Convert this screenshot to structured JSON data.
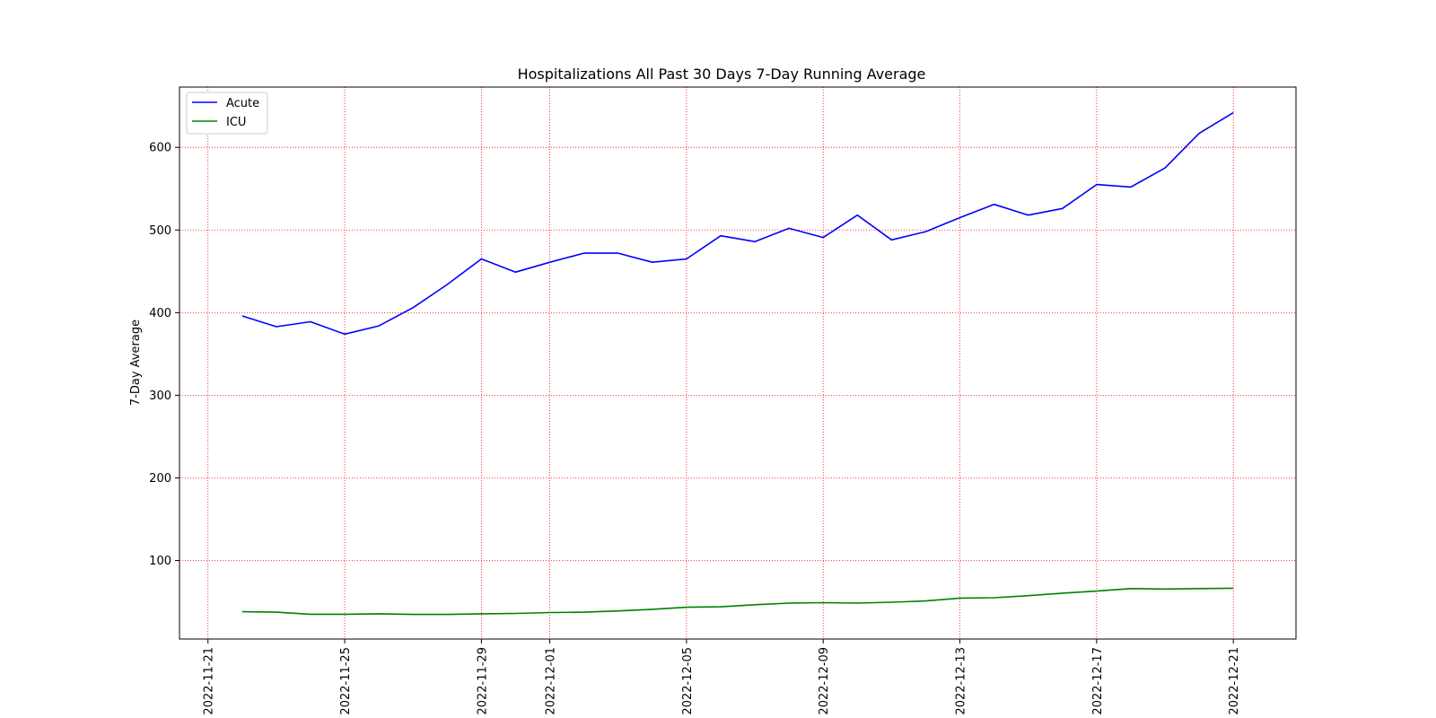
{
  "chart_data": {
    "type": "line",
    "title": "Hospitalizations All Past 30 Days 7-Day Running Average",
    "xlabel": "",
    "ylabel": "7-Day Average",
    "x": [
      "2022-11-22",
      "2022-11-23",
      "2022-11-24",
      "2022-11-25",
      "2022-11-26",
      "2022-11-27",
      "2022-11-28",
      "2022-11-29",
      "2022-11-30",
      "2022-12-01",
      "2022-12-02",
      "2022-12-03",
      "2022-12-04",
      "2022-12-05",
      "2022-12-06",
      "2022-12-07",
      "2022-12-08",
      "2022-12-09",
      "2022-12-10",
      "2022-12-11",
      "2022-12-12",
      "2022-12-13",
      "2022-12-14",
      "2022-12-15",
      "2022-12-16",
      "2022-12-17",
      "2022-12-18",
      "2022-12-19",
      "2022-12-20",
      "2022-12-21"
    ],
    "series": [
      {
        "name": "Acute",
        "color": "#0000ff",
        "values": [
          396,
          383,
          389,
          374,
          384,
          406,
          434,
          465,
          449,
          461,
          472,
          472,
          461,
          465,
          493,
          486,
          502,
          491,
          518,
          488,
          498,
          515,
          531,
          518,
          526,
          555,
          552,
          575,
          617,
          642
        ]
      },
      {
        "name": "ICU",
        "color": "#008000",
        "values": [
          38,
          37.5,
          35,
          35,
          35.5,
          34.8,
          34.8,
          35.5,
          36,
          37,
          37.5,
          39,
          41,
          43.5,
          44,
          46.5,
          48.5,
          49,
          48.5,
          49.5,
          51,
          54.5,
          55,
          57.5,
          60.5,
          63,
          66,
          65.5,
          66,
          66.5
        ]
      }
    ],
    "xticks": [
      "2022-11-21",
      "2022-11-25",
      "2022-11-29",
      "2022-12-01",
      "2022-12-05",
      "2022-12-09",
      "2022-12-13",
      "2022-12-17",
      "2022-12-21"
    ],
    "yticks": [
      100,
      200,
      300,
      400,
      500,
      600
    ],
    "xlim": [
      "2022-11-20T04:00",
      "2022-12-22T20:00"
    ],
    "ylim": [
      5,
      673
    ],
    "grid": true,
    "grid_color": "#ff0000",
    "legend_position": "top-left"
  }
}
